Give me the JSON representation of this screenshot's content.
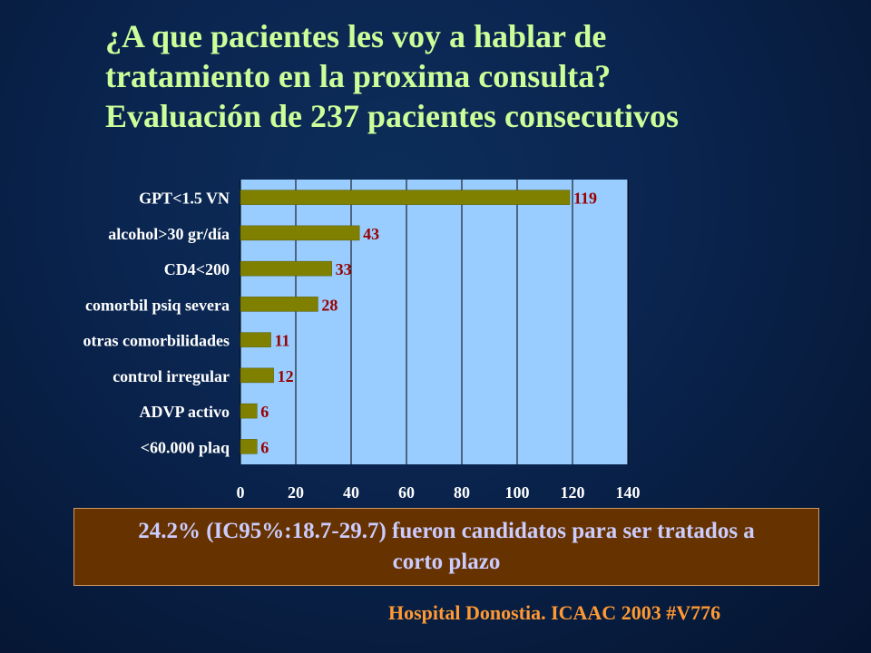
{
  "title_lines": [
    "¿A que pacientes les voy a hablar de",
    "tratamiento en la proxima consulta?",
    "Evaluación de 237 pacientes consecutivos"
  ],
  "chart_data": {
    "type": "bar",
    "orientation": "horizontal",
    "categories": [
      "GPT<1.5 VN",
      "alcohol>30 gr/día",
      "CD4<200",
      "comorbil psiq severa",
      "otras comorbilidades",
      "control irregular",
      "ADVP activo",
      "<60.000 plaq"
    ],
    "values": [
      119,
      43,
      33,
      28,
      11,
      12,
      6,
      6
    ],
    "data_labels": [
      "119",
      "43",
      "33",
      "28",
      "11",
      "12",
      "6",
      "6"
    ],
    "xlim": [
      0,
      140
    ],
    "x_ticks": [
      "0",
      "20",
      "40",
      "60",
      "80",
      "100",
      "120",
      "140"
    ],
    "grid": true,
    "title": "",
    "xlabel": "",
    "ylabel": "",
    "colors": {
      "bar": "#808000",
      "plot_background": "#99ccff",
      "grid": "#000000",
      "category_text": "#ffffff",
      "value_text": "#990000",
      "tick_text": "#ffffff"
    }
  },
  "summary": "24.2% (IC95%:18.7-29.7) fueron candidatos para ser tratados a corto plazo",
  "footer": "Hospital Donostia. ICAAC 2003 #V776"
}
